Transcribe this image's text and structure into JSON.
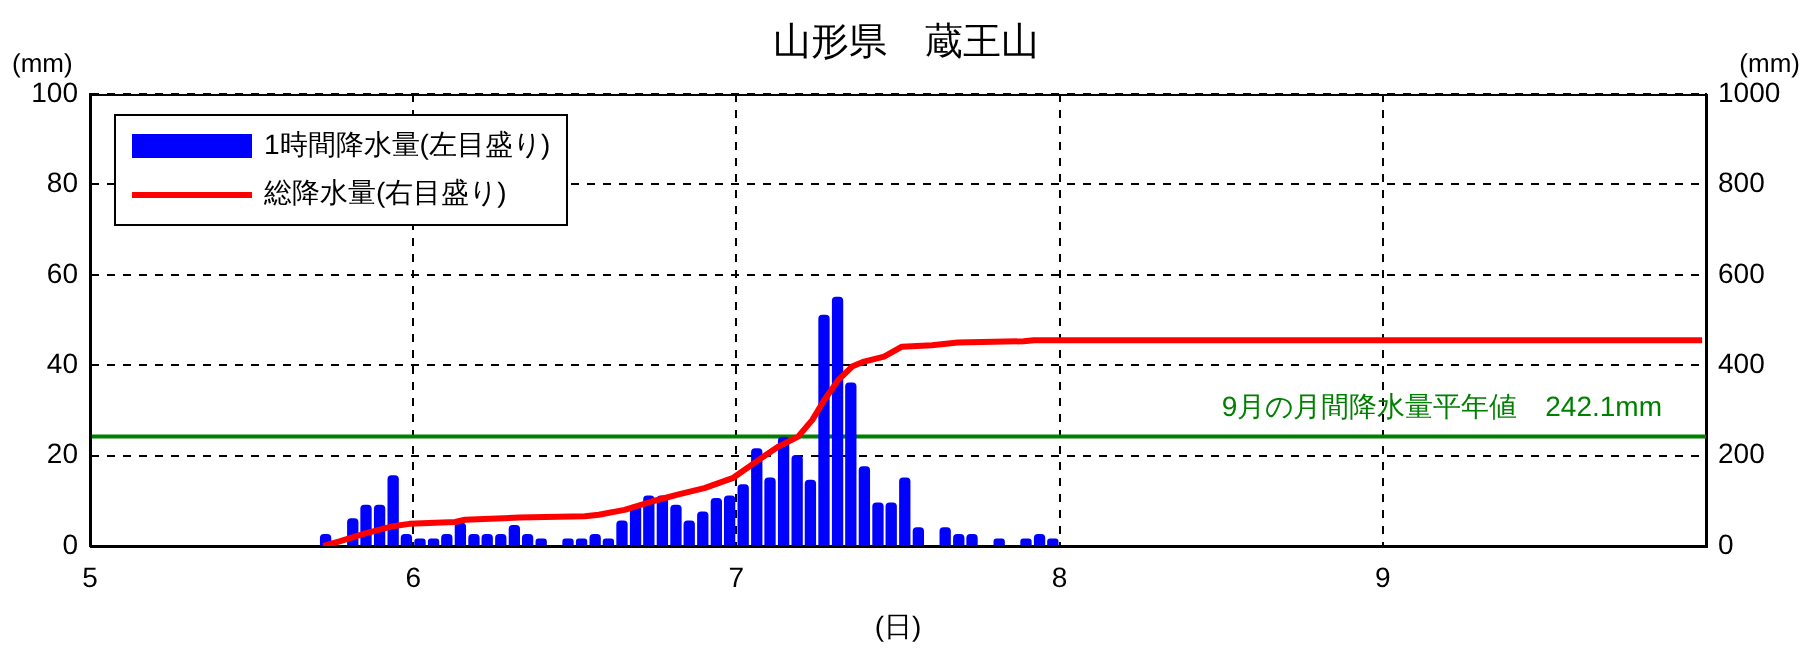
{
  "chart_data": {
    "type": "bar",
    "title": "山形県　蔵王山",
    "xlabel": "(日)",
    "ylabel": "(mm)",
    "y2label": "(mm)",
    "xlim": [
      5,
      10
    ],
    "xticks": [
      5,
      6,
      7,
      8,
      9
    ],
    "ylim": [
      0,
      100
    ],
    "yticks": [
      0,
      20,
      40,
      60,
      80,
      100
    ],
    "y2lim": [
      0,
      1000
    ],
    "y2ticks": [
      0,
      200,
      400,
      600,
      800,
      1000
    ],
    "grid": true,
    "legend": "top left",
    "series": [
      {
        "name": "1時間降水量(左目盛り)",
        "color": "#0000ff",
        "x": [
          5.729,
          5.771,
          5.813,
          5.854,
          5.896,
          5.938,
          5.979,
          6.021,
          6.063,
          6.104,
          6.146,
          6.188,
          6.229,
          6.271,
          6.313,
          6.354,
          6.396,
          6.479,
          6.521,
          6.563,
          6.604,
          6.646,
          6.688,
          6.729,
          6.771,
          6.813,
          6.854,
          6.896,
          6.938,
          6.979,
          7.021,
          7.063,
          7.104,
          7.146,
          7.188,
          7.229,
          7.271,
          7.313,
          7.354,
          7.396,
          7.438,
          7.479,
          7.521,
          7.563,
          7.646,
          7.688,
          7.729,
          7.813,
          7.896,
          7.938,
          7.979
        ],
        "values": [
          2.5,
          null,
          6,
          9,
          9,
          15.5,
          2.5,
          1.5,
          1.5,
          2.5,
          5,
          2.5,
          2.5,
          2.5,
          4.5,
          2.5,
          1.5,
          1.5,
          1.5,
          2.5,
          1.5,
          5.5,
          9,
          11,
          11,
          9,
          5.5,
          7.5,
          10.5,
          11,
          13.5,
          21.5,
          15,
          24,
          20,
          14.5,
          51,
          55,
          36,
          17.5,
          9.5,
          9.5,
          15,
          4,
          4,
          2.5,
          2.5,
          1.5,
          1.5,
          2.5,
          1.5
        ]
      },
      {
        "name": "総降水量(右目盛り)",
        "type": "line",
        "axis": "y2",
        "color": "#ff0000",
        "marker": "none",
        "line_style": "solid",
        "x": [
          5.722,
          5.772,
          5.852,
          5.932,
          5.988,
          6.13,
          6.16,
          6.327,
          6.531,
          6.574,
          6.654,
          6.741,
          6.821,
          6.901,
          6.988,
          7.068,
          7.13,
          7.191,
          7.235,
          7.272,
          7.315,
          7.358,
          7.395,
          7.457,
          7.512,
          7.605,
          7.685,
          7.889,
          7.92,
          9.988
        ],
        "values": [
          0,
          10,
          28,
          43,
          49,
          53,
          58,
          63,
          66,
          69,
          80,
          99,
          114,
          128,
          150,
          190,
          220,
          242,
          279,
          323,
          367,
          397,
          408,
          419,
          441,
          444,
          450,
          453,
          455,
          455
        ]
      }
    ],
    "ref_lines": [
      {
        "axis": "y2",
        "value": 242.1,
        "label": "9月の月間降水量平年値　242.1mm",
        "color": "#008000"
      }
    ]
  }
}
